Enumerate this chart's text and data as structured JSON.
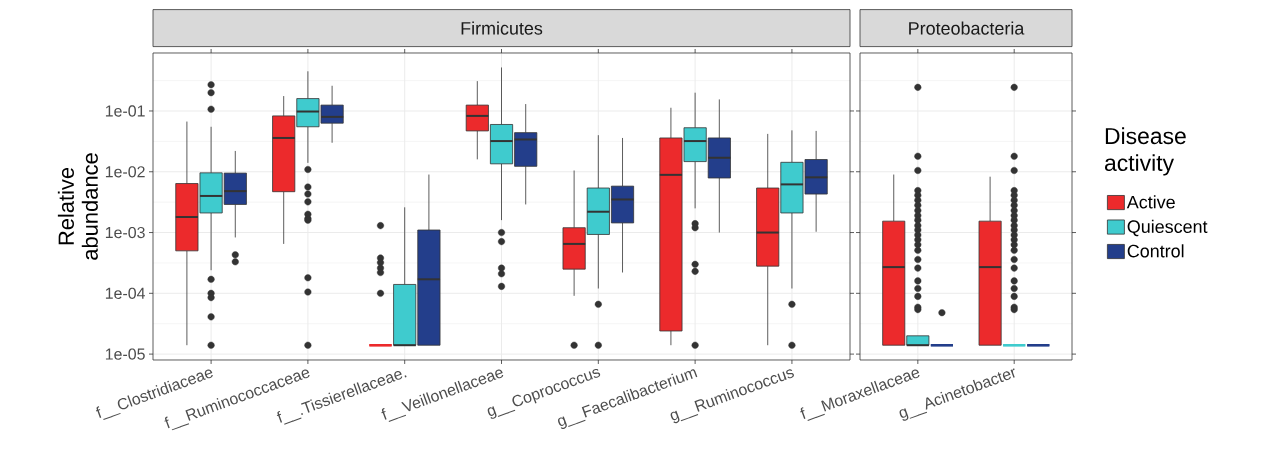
{
  "chart_data": [
    {
      "type": "box",
      "title": "Firmicutes",
      "ylabel": "Relative abundance",
      "categories": [
        "f__Clostridiaceae",
        "f__Ruminococcaceae",
        "f__.Tissierellaceae.",
        "f__Veillonellaceae",
        "g__Coprococcus",
        "g__Faecalibacterium",
        "g__Ruminococcus"
      ],
      "series": [
        {
          "color": "#ec2a2c",
          "boxes": [
            {
              "low": 1.4e-05,
              "q1": 0.0005,
              "median": 0.0018,
              "q3": 0.0064,
              "high": 0.067
            },
            {
              "low": 0.00065,
              "q1": 0.0047,
              "median": 0.036,
              "q3": 0.083,
              "high": 0.176
            },
            {
              "low": 1.4e-05,
              "q1": 1.4e-05,
              "median": 1.4e-05,
              "q3": 1.4e-05,
              "high": 1.4e-05,
              "outliers": [
                0.0013,
                0.00038,
                0.00032,
                0.00026,
                0.00022,
                0.0001
              ]
            },
            {
              "low": 0.016,
              "q1": 0.047,
              "median": 0.083,
              "q3": 0.125,
              "high": 0.31
            },
            {
              "low": 9.1e-05,
              "q1": 0.00025,
              "median": 0.00065,
              "q3": 0.0012,
              "high": 0.0105,
              "outliers": [
                1.4e-05
              ]
            },
            {
              "low": 1.4e-05,
              "q1": 2.4e-05,
              "median": 0.0089,
              "q3": 0.036,
              "high": 0.113
            },
            {
              "low": 1.4e-05,
              "q1": 0.00028,
              "median": 0.001,
              "q3": 0.0054,
              "high": 0.042
            }
          ]
        },
        {
          "color": "#3fcbce",
          "boxes": [
            {
              "low": 0.00024,
              "q1": 0.0021,
              "median": 0.004,
              "q3": 0.0096,
              "high": 0.055,
              "outliers": [
                0.27,
                0.2,
                0.107,
                0.00017,
                0.0001,
                8.5e-05,
                4.1e-05,
                1.4e-05
              ]
            },
            {
              "low": 0.014,
              "q1": 0.055,
              "median": 0.098,
              "q3": 0.16,
              "high": 0.45,
              "outliers": [
                0.0109,
                0.0056,
                0.0043,
                0.0032,
                0.002,
                0.0017,
                0.0016,
                0.00018,
                0.000105,
                1.4e-05
              ]
            },
            {
              "low": 1.4e-05,
              "q1": 1.4e-05,
              "median": 1.4e-05,
              "q3": 0.00014,
              "high": 0.0026
            },
            {
              "low": 0.0016,
              "q1": 0.0135,
              "median": 0.032,
              "q3": 0.06,
              "high": 0.52,
              "outliers": [
                0.001,
                0.00071,
                0.00026,
                0.00021,
                0.00013
              ]
            },
            {
              "low": 0.00012,
              "q1": 0.00093,
              "median": 0.0022,
              "q3": 0.0054,
              "high": 0.04,
              "outliers": [
                6.6e-05,
                1.4e-05
              ]
            },
            {
              "low": 0.0025,
              "q1": 0.0147,
              "median": 0.032,
              "q3": 0.053,
              "high": 0.2,
              "outliers": [
                0.0014,
                0.0012,
                0.0003,
                0.00023,
                1.4e-05
              ]
            },
            {
              "low": 0.00012,
              "q1": 0.0021,
              "median": 0.0062,
              "q3": 0.0143,
              "high": 0.048,
              "outliers": [
                6.6e-05,
                1.4e-05
              ]
            }
          ]
        },
        {
          "color": "#233e8b",
          "boxes": [
            {
              "low": 0.00083,
              "q1": 0.0029,
              "median": 0.0048,
              "q3": 0.0095,
              "high": 0.022,
              "outliers": [
                0.00043,
                0.00033
              ]
            },
            {
              "low": 0.03,
              "q1": 0.063,
              "median": 0.08,
              "q3": 0.125,
              "high": 0.26
            },
            {
              "low": 1.4e-05,
              "q1": 1.4e-05,
              "median": 0.00017,
              "q3": 0.0011,
              "high": 0.009
            },
            {
              "low": 0.0029,
              "q1": 0.0123,
              "median": 0.034,
              "q3": 0.044,
              "high": 0.13
            },
            {
              "low": 0.00022,
              "q1": 0.00144,
              "median": 0.0035,
              "q3": 0.0058,
              "high": 0.036
            },
            {
              "low": 0.001,
              "q1": 0.0079,
              "median": 0.017,
              "q3": 0.036,
              "high": 0.155
            },
            {
              "low": 0.00103,
              "q1": 0.0043,
              "median": 0.0081,
              "q3": 0.0159,
              "high": 0.047
            }
          ]
        }
      ],
      "log": true,
      "ylim": [
        8e-06,
        0.9
      ],
      "yticks": [
        {
          "value": 1e-05,
          "label": "1e-05"
        },
        {
          "value": 0.0001,
          "label": "1e-04"
        },
        {
          "value": 0.001,
          "label": "1e-03"
        },
        {
          "value": 0.01,
          "label": "1e-02"
        },
        {
          "value": 0.1,
          "label": "1e-01"
        }
      ],
      "grid": true
    },
    {
      "type": "box",
      "title": "Proteobacteria",
      "categories": [
        "f__Moraxellaceae",
        "g__Acinetobacter"
      ],
      "series": [
        {
          "name": "Active",
          "color": "#ec2a2c",
          "boxes": [
            {
              "low": 1.4e-05,
              "q1": 1.4e-05,
              "median": 0.00027,
              "q3": 0.00154,
              "high": 0.009
            },
            {
              "low": 1.4e-05,
              "q1": 1.4e-05,
              "median": 0.00027,
              "q3": 0.00154,
              "high": 0.0083
            }
          ]
        },
        {
          "name": "Quiescent",
          "color": "#3fcbce",
          "boxes": [
            {
              "low": 1.4e-05,
              "q1": 1.4e-05,
              "median": 1.4e-05,
              "q3": 2e-05,
              "high": 2e-05,
              "outliers": [
                0.245,
                0.018,
                0.0105,
                0.0049,
                0.0041,
                0.0034,
                0.0028,
                0.0023,
                0.0019,
                0.0016,
                0.0013,
                0.0011,
                0.00091,
                0.00076,
                0.00063,
                0.00051,
                0.00036,
                0.00026,
                0.00016,
                0.00012,
                8.9e-05,
                5.9e-05,
                5.4e-05
              ]
            },
            {
              "low": 1.4e-05,
              "q1": 1.4e-05,
              "median": 1.4e-05,
              "q3": 1.4e-05,
              "high": 1.4e-05,
              "outliers": [
                0.245,
                0.018,
                0.0105,
                0.0049,
                0.0041,
                0.0034,
                0.0028,
                0.0023,
                0.0019,
                0.0016,
                0.0013,
                0.0011,
                0.00091,
                0.00076,
                0.00063,
                0.00051,
                0.00036,
                0.00026,
                0.00016,
                0.00012,
                8.9e-05,
                5.9e-05,
                5.4e-05
              ]
            }
          ]
        },
        {
          "name": "Control",
          "color": "#233e8b",
          "boxes": [
            {
              "low": 1.4e-05,
              "q1": 1.4e-05,
              "median": 1.4e-05,
              "q3": 1.4e-05,
              "high": 1.4e-05,
              "outliers": [
                4.8e-05
              ]
            },
            {
              "low": 1.4e-05,
              "q1": 1.4e-05,
              "median": 1.4e-05,
              "q3": 1.4e-05,
              "high": 1.4e-05
            }
          ]
        }
      ],
      "log": true,
      "ylim": [
        8e-06,
        0.9
      ],
      "yticks": [
        {
          "value": 1e-05,
          "label": null
        },
        {
          "value": 0.0001,
          "label": null
        },
        {
          "value": 0.001,
          "label": null
        },
        {
          "value": 0.01,
          "label": null
        },
        {
          "value": 0.1,
          "label": null
        }
      ],
      "tick_labels": "x",
      "grid": true,
      "legend": "right",
      "legend_title": "Disease activity"
    }
  ]
}
